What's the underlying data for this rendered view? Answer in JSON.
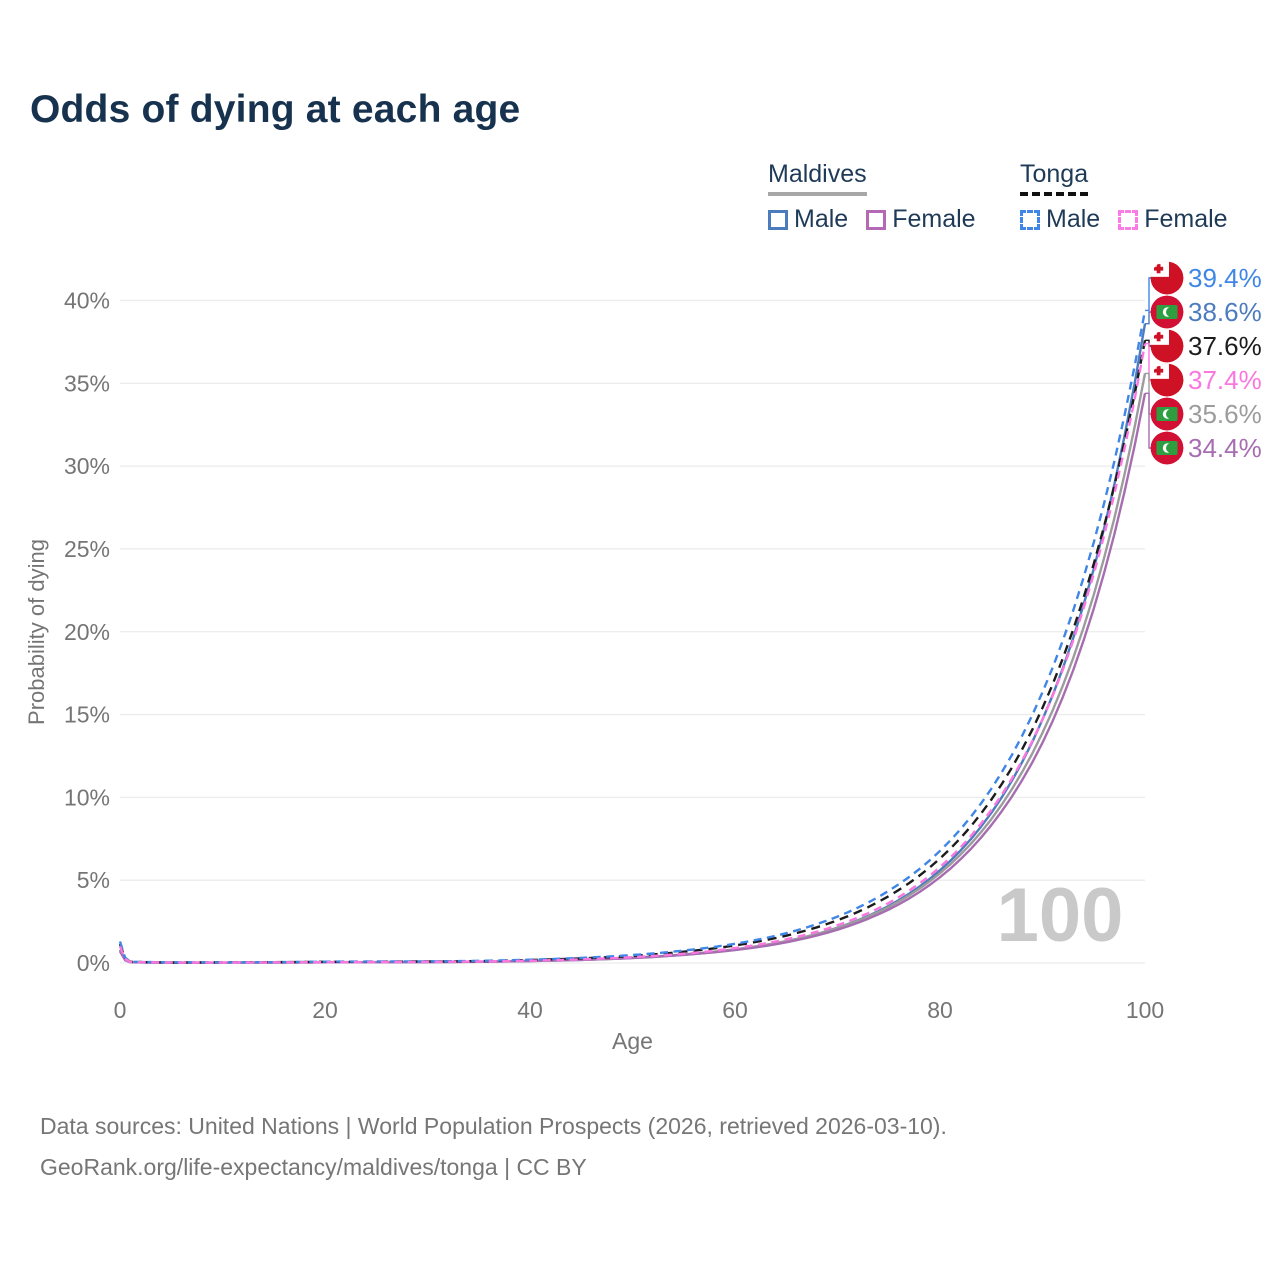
{
  "header": {
    "title": "Odds of dying at each age"
  },
  "legend": {
    "groups": [
      {
        "label": "Maldives",
        "line_style": "solid",
        "header_line_color": "#a7a7a7",
        "items": [
          {
            "label": "Male",
            "color": "#4d7cbe",
            "dashed": false
          },
          {
            "label": "Female",
            "color": "#b569b5",
            "dashed": false
          }
        ]
      },
      {
        "label": "Tonga",
        "line_style": "dashed",
        "header_line_color": "#111111",
        "items": [
          {
            "label": "Male",
            "color": "#3f86e6",
            "dashed": true
          },
          {
            "label": "Female",
            "color": "#fb7ce4",
            "dashed": true
          }
        ]
      }
    ]
  },
  "chart_data": {
    "type": "line",
    "title": "Odds of dying at each age",
    "xlabel": "Age",
    "ylabel": "Probability of dying",
    "xlim": [
      0,
      100
    ],
    "ylim_percent": [
      0,
      40
    ],
    "x_ticks": [
      0,
      20,
      40,
      60,
      80,
      100
    ],
    "y_ticks_percent": [
      0,
      5,
      10,
      15,
      20,
      25,
      30,
      35,
      40
    ],
    "grid": "horizontal",
    "gridline_color": "#ececec",
    "axis_text_color": "#757575",
    "watermark": "100",
    "watermark_color": "#c9c9c9",
    "ages": [
      0,
      1,
      5,
      10,
      15,
      20,
      25,
      30,
      35,
      40,
      45,
      50,
      55,
      60,
      65,
      70,
      75,
      80,
      85,
      90,
      95,
      100
    ],
    "series": [
      {
        "name": "Maldives Male",
        "country": "Maldives",
        "sex": "Male",
        "color": "#4d7cbe",
        "dashed": false,
        "flag": "maldives",
        "end_label": "38.6%",
        "values_percent": [
          0.8,
          0.05,
          0.02,
          0.02,
          0.03,
          0.05,
          0.05,
          0.06,
          0.08,
          0.12,
          0.19,
          0.31,
          0.5,
          0.81,
          1.31,
          2.13,
          3.45,
          5.6,
          9.06,
          14.7,
          23.8,
          38.6
        ]
      },
      {
        "name": "Maldives",
        "country": "Maldives",
        "sex": "Both",
        "color": "#9c9c9c",
        "dashed": false,
        "flag": "maldives",
        "end_label": "35.6%",
        "values_percent": [
          0.75,
          0.05,
          0.02,
          0.02,
          0.03,
          0.04,
          0.05,
          0.06,
          0.08,
          0.13,
          0.2,
          0.32,
          0.52,
          0.83,
          1.32,
          2.12,
          3.39,
          5.42,
          8.68,
          13.9,
          22.24,
          35.6
        ]
      },
      {
        "name": "Maldives Female",
        "country": "Maldives",
        "sex": "Female",
        "color": "#a76db1",
        "dashed": false,
        "flag": "maldives",
        "end_label": "34.4%",
        "values_percent": [
          0.7,
          0.04,
          0.02,
          0.02,
          0.03,
          0.04,
          0.04,
          0.05,
          0.07,
          0.12,
          0.19,
          0.3,
          0.49,
          0.78,
          1.25,
          2.01,
          3.23,
          5.18,
          8.32,
          13.3,
          21.4,
          34.4
        ]
      },
      {
        "name": "Tonga",
        "country": "Tonga",
        "sex": "Both",
        "color": "#1c1c1c",
        "dashed": true,
        "flag": "tonga",
        "end_label": "37.6%",
        "values_percent": [
          1.15,
          0.07,
          0.03,
          0.04,
          0.05,
          0.07,
          0.08,
          0.09,
          0.11,
          0.18,
          0.28,
          0.43,
          0.68,
          1.06,
          1.65,
          2.58,
          4.04,
          6.31,
          9.86,
          15.4,
          24.1,
          37.6
        ]
      },
      {
        "name": "Tonga Male",
        "country": "Tonga",
        "sex": "Male",
        "color": "#3f86e6",
        "dashed": true,
        "flag": "tonga",
        "end_label": "39.4%",
        "values_percent": [
          1.3,
          0.08,
          0.04,
          0.04,
          0.05,
          0.08,
          0.09,
          0.1,
          0.13,
          0.2,
          0.31,
          0.48,
          0.75,
          1.16,
          1.8,
          2.8,
          4.36,
          6.77,
          10.52,
          16.35,
          25.4,
          39.4
        ]
      },
      {
        "name": "Tonga Female",
        "country": "Tonga",
        "sex": "Female",
        "color": "#fb77e0",
        "dashed": true,
        "flag": "tonga",
        "end_label": "37.4%",
        "values_percent": [
          1.0,
          0.06,
          0.03,
          0.03,
          0.04,
          0.05,
          0.06,
          0.07,
          0.09,
          0.14,
          0.22,
          0.35,
          0.56,
          0.9,
          1.43,
          2.28,
          3.63,
          5.79,
          9.23,
          14.7,
          23.5,
          37.4
        ]
      }
    ],
    "end_labels_order": [
      4,
      0,
      3,
      5,
      1,
      2
    ],
    "legend_position": "top-right"
  },
  "footer": {
    "line1": "Data sources: United Nations | World Population Prospects (2026, retrieved 2026-03-10).",
    "line2": "GeoRank.org/life-expectancy/maldives/tonga | CC BY"
  }
}
